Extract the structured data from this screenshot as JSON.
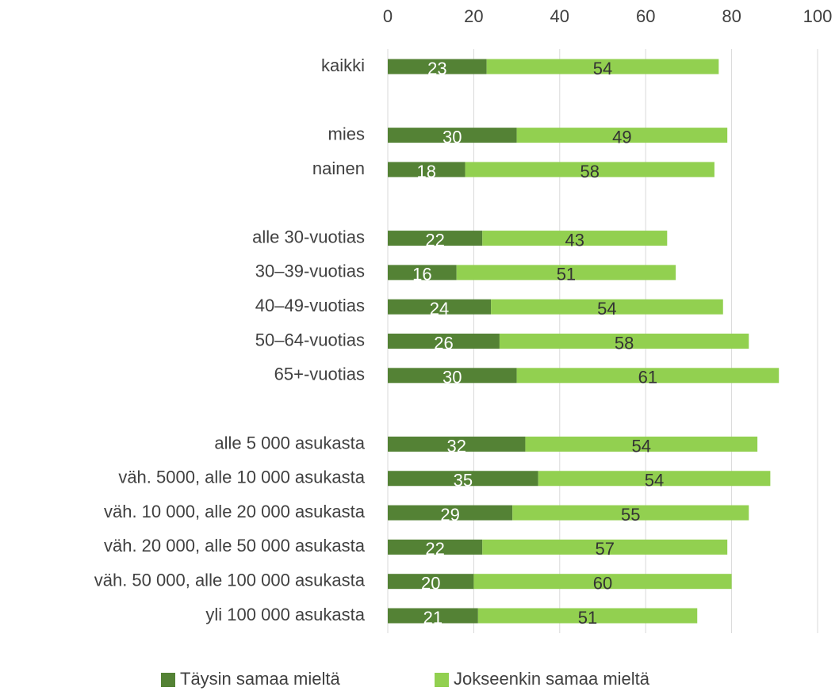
{
  "chart_data": {
    "type": "stacked-bar-horizontal",
    "categories": [
      "kaikki",
      null,
      "mies",
      "nainen",
      null,
      "alle 30-vuotias",
      "30–39-vuotias",
      "40–49-vuotias",
      "50–64-vuotias",
      "65+-vuotias",
      null,
      "alle 5 000 asukasta",
      "väh. 5000, alle 10 000 asukasta",
      "väh. 10 000, alle 20 000 asukasta",
      "väh. 20 000, alle 50 000 asukasta",
      "väh. 50 000, alle 100 000 asukasta",
      "yli 100 000 asukasta"
    ],
    "series": [
      {
        "name": "Täysin samaa mieltä",
        "color": "#548235",
        "label_color": "#ffffff",
        "values": [
          23,
          null,
          30,
          18,
          null,
          22,
          16,
          24,
          26,
          30,
          null,
          32,
          35,
          29,
          22,
          20,
          21
        ]
      },
      {
        "name": "Jokseenkin samaa mieltä",
        "color": "#92d050",
        "label_color": "#333333",
        "values": [
          54,
          null,
          49,
          58,
          null,
          43,
          51,
          54,
          58,
          61,
          null,
          54,
          54,
          55,
          57,
          60,
          51
        ]
      }
    ],
    "xlim": [
      0,
      100
    ],
    "xticks": [
      0,
      20,
      40,
      60,
      80,
      100
    ],
    "grid": true,
    "legend": "bottom"
  }
}
